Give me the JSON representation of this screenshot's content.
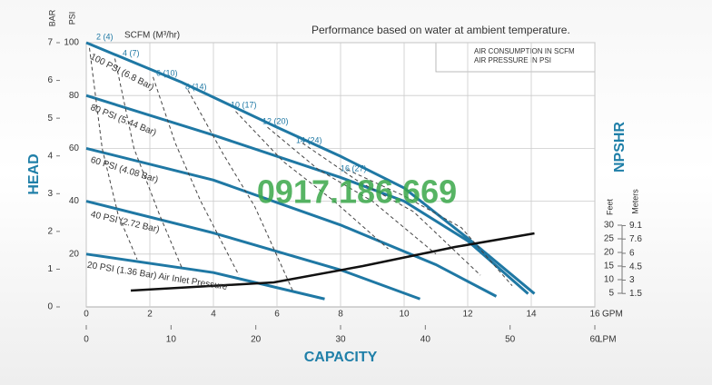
{
  "chart_data": {
    "type": "line",
    "title": "Performance based on water at ambient temperature.",
    "x_label": "CAPACITY",
    "y_label": "HEAD",
    "y2_label": "NPSHR",
    "x_unit": "GPM",
    "x2_unit": "LPM",
    "y_unit": "PSI",
    "y3_unit": "BAR",
    "y2_unit": "Feet",
    "y4_unit": "Meters",
    "scfm_label": "SCFM (M³/hr)",
    "legend_box": [
      "AIR CONSUMPTION IN SCFM",
      "AIR PRESSURE IN PSI"
    ],
    "watermark": "0917.186.669",
    "grid": true,
    "xlim": [
      0,
      16
    ],
    "xticks": [
      0,
      2,
      4,
      6,
      8,
      10,
      12,
      14,
      16
    ],
    "x2lim": [
      0,
      60
    ],
    "x2ticks": [
      0,
      10,
      20,
      30,
      40,
      50,
      60
    ],
    "ylim": [
      0,
      100
    ],
    "yticks": [
      20,
      40,
      60,
      80,
      100
    ],
    "y3lim": [
      0,
      7
    ],
    "y3ticks": [
      0,
      1,
      2,
      3,
      4,
      5,
      6,
      7
    ],
    "y2lim": [
      0,
      97
    ],
    "y2ticks": [
      5,
      10,
      15,
      20,
      25,
      30
    ],
    "y4lim": [
      0,
      29.57
    ],
    "y4ticks": [
      1.5,
      3,
      4.5,
      6,
      7.6,
      9.1
    ],
    "series": [
      {
        "name": "100 PSI (6.8 Bar)",
        "color": "#1f78a4",
        "style": "solid",
        "x": [
          0,
          3,
          6,
          8,
          10,
          12,
          14.1
        ],
        "values": [
          100,
          85,
          68,
          57,
          45,
          26,
          5
        ]
      },
      {
        "name": "80 PSI (5.44 Bar)",
        "color": "#1f78a4",
        "style": "solid",
        "x": [
          0,
          4,
          8,
          10,
          12,
          13.9
        ],
        "values": [
          80,
          65,
          49,
          40,
          25,
          5
        ]
      },
      {
        "name": "60 PSI (4.08 Bar)",
        "color": "#1f78a4",
        "style": "solid",
        "x": [
          0,
          4,
          8,
          11,
          12.9
        ],
        "values": [
          60,
          48,
          31,
          16,
          4
        ]
      },
      {
        "name": "40 PSI (2.72 Bar)",
        "color": "#1f78a4",
        "style": "solid",
        "x": [
          0,
          4,
          8,
          10.5
        ],
        "values": [
          40,
          28,
          14,
          3
        ]
      },
      {
        "name": "20 PSI (1.36 Bar) Air Inlet Pressure",
        "color": "#1f78a4",
        "style": "solid",
        "x": [
          0,
          4,
          7.5
        ],
        "values": [
          20,
          13,
          3
        ]
      },
      {
        "name": "2 (4)",
        "color": "#444444",
        "style": "dashed",
        "x": [
          0.1,
          0.5,
          1.0,
          1.6
        ],
        "values": [
          98,
          60,
          35,
          18
        ]
      },
      {
        "name": "4 (7)",
        "color": "#444444",
        "style": "dashed",
        "x": [
          0.9,
          1.5,
          2.3,
          3.0
        ],
        "values": [
          94,
          60,
          35,
          15
        ]
      },
      {
        "name": "6 (10)",
        "color": "#444444",
        "style": "dashed",
        "x": [
          2.1,
          2.8,
          3.6,
          4.8
        ],
        "values": [
          87,
          62,
          40,
          12
        ]
      },
      {
        "name": "8 (14)",
        "color": "#444444",
        "style": "dashed",
        "x": [
          3.2,
          4.3,
          5.3,
          6.5
        ],
        "values": [
          82,
          58,
          38,
          6
        ]
      },
      {
        "name": "10 (17)",
        "color": "#444444",
        "style": "dashed",
        "x": [
          4.7,
          6.2,
          7.8,
          9.5
        ],
        "values": [
          74,
          55,
          40,
          22
        ]
      },
      {
        "name": "12 (20)",
        "color": "#444444",
        "style": "dashed",
        "x": [
          5.7,
          7.3,
          9,
          11
        ],
        "values": [
          68,
          52,
          40,
          20
        ]
      },
      {
        "name": "14 (24)",
        "color": "#444444",
        "style": "dashed",
        "x": [
          6.8,
          8.5,
          10.3,
          12.4
        ],
        "values": [
          62,
          48,
          36,
          12
        ]
      },
      {
        "name": "16 (27)",
        "color": "#444444",
        "style": "dashed",
        "x": [
          8.2,
          10,
          11.8,
          13.4
        ],
        "values": [
          52,
          42,
          30,
          8
        ]
      }
    ],
    "npshr_curve": {
      "color": "#111111",
      "axis": "y2",
      "x": [
        1.4,
        5.9,
        8.7,
        11.6,
        14.1
      ],
      "values": [
        6,
        9,
        15,
        22,
        27
      ]
    }
  }
}
